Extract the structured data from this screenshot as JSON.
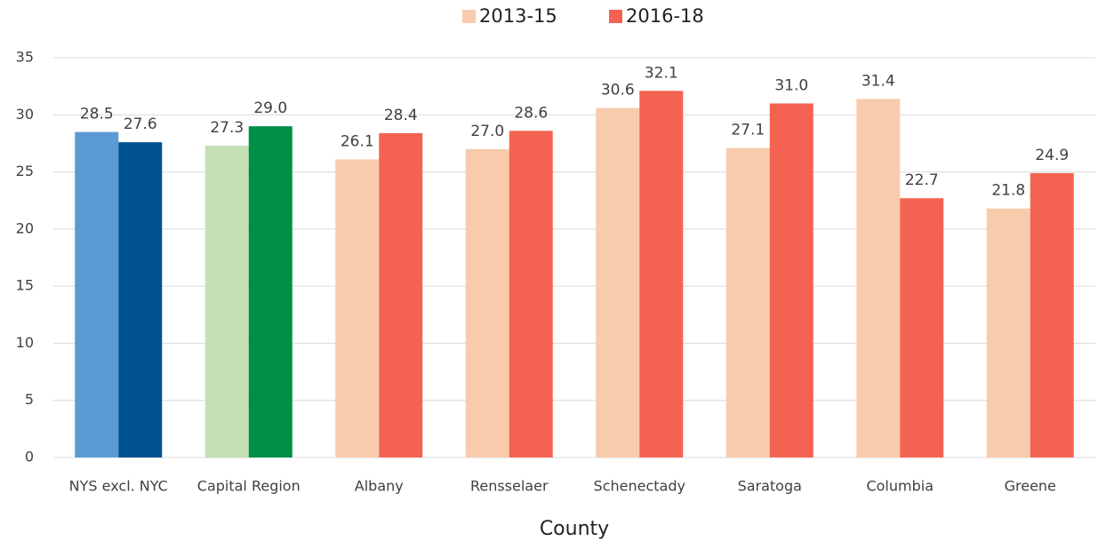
{
  "chart_data": {
    "type": "bar",
    "x_label": "County",
    "categories": [
      "NYS excl. NYC",
      "Capital Region",
      "Albany",
      "Rensselaer",
      "Schenectady",
      "Saratoga",
      "Columbia",
      "Greene"
    ],
    "series": [
      {
        "name": "2013-15",
        "color": "#f8cbad",
        "colors": [
          "#5b9bd5",
          "#c5e0b4",
          "#f8cbad",
          "#f8cbad",
          "#f8cbad",
          "#f8cbad",
          "#f8cbad",
          "#f8cbad"
        ],
        "values": [
          28.5,
          27.3,
          26.1,
          27.0,
          30.6,
          27.1,
          31.4,
          21.8
        ],
        "value_labels": [
          "28.5",
          "27.3",
          "26.1",
          "27.0",
          "30.6",
          "27.1",
          "31.4",
          "21.8"
        ]
      },
      {
        "name": "2016-18",
        "color": "#f46352",
        "colors": [
          "#00518f",
          "#008f45",
          "#f46352",
          "#f46352",
          "#f46352",
          "#f46352",
          "#f46352",
          "#f46352"
        ],
        "values": [
          27.6,
          29.0,
          28.4,
          28.6,
          32.1,
          31.0,
          22.7,
          24.9
        ],
        "value_labels": [
          "27.6",
          "29.0",
          "28.4",
          "28.6",
          "32.1",
          "31.0",
          "22.7",
          "24.9"
        ]
      }
    ],
    "ylim": [
      0,
      35
    ],
    "yticks": [
      0,
      5,
      10,
      15,
      20,
      25,
      30,
      35
    ],
    "grid": true,
    "legend": "top"
  }
}
